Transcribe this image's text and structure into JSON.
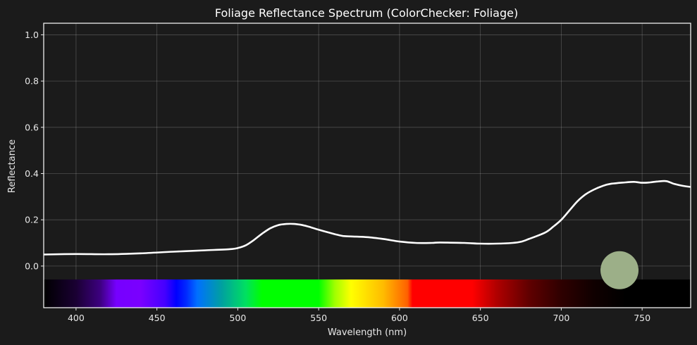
{
  "chart_data": {
    "type": "line",
    "title": "Foliage Reflectance Spectrum (ColorChecker: Foliage)",
    "xlabel": "Wavelength (nm)",
    "ylabel": "Reflectance",
    "xlim": [
      380,
      780
    ],
    "ylim": [
      -0.18,
      1.05
    ],
    "xticks": [
      400,
      450,
      500,
      550,
      600,
      650,
      700,
      750
    ],
    "yticks": [
      0.0,
      0.2,
      0.4,
      0.6,
      0.8,
      1.0
    ],
    "ytick_labels": [
      "0.0",
      "0.2",
      "0.4",
      "0.6",
      "0.8",
      "1.0"
    ],
    "grid": true,
    "legend": null,
    "series": [
      {
        "name": "Foliage reflectance",
        "color": "#ffffff",
        "x": [
          380,
          400,
          420,
          440,
          460,
          480,
          495,
          500,
          505,
          510,
          515,
          520,
          525,
          530,
          535,
          540,
          545,
          550,
          560,
          565,
          570,
          580,
          590,
          600,
          610,
          620,
          625,
          640,
          650,
          660,
          670,
          675,
          680,
          690,
          695,
          700,
          705,
          710,
          715,
          720,
          725,
          730,
          740,
          745,
          750,
          755,
          760,
          765,
          770,
          775,
          780
        ],
        "values": [
          0.05,
          0.052,
          0.051,
          0.055,
          0.062,
          0.068,
          0.073,
          0.078,
          0.09,
          0.113,
          0.14,
          0.163,
          0.177,
          0.182,
          0.182,
          0.177,
          0.168,
          0.157,
          0.138,
          0.13,
          0.128,
          0.125,
          0.117,
          0.106,
          0.1,
          0.1,
          0.102,
          0.1,
          0.097,
          0.097,
          0.1,
          0.105,
          0.117,
          0.145,
          0.17,
          0.2,
          0.24,
          0.28,
          0.31,
          0.33,
          0.345,
          0.355,
          0.362,
          0.364,
          0.36,
          0.362,
          0.366,
          0.367,
          0.355,
          0.347,
          0.342
        ]
      }
    ],
    "annotations": {
      "spectrum_band": {
        "y_range": [
          -0.18,
          -0.058
        ],
        "stops": [
          {
            "nm": 380,
            "color": "#000000"
          },
          {
            "nm": 400,
            "color": "#1a0033"
          },
          {
            "nm": 415,
            "color": "#3d0080"
          },
          {
            "nm": 425,
            "color": "#7600ff"
          },
          {
            "nm": 440,
            "color": "#7a00ff"
          },
          {
            "nm": 455,
            "color": "#4400ff"
          },
          {
            "nm": 462,
            "color": "#0000ff"
          },
          {
            "nm": 468,
            "color": "#0028ff"
          },
          {
            "nm": 475,
            "color": "#0070ff"
          },
          {
            "nm": 490,
            "color": "#00a0a0"
          },
          {
            "nm": 505,
            "color": "#00e060"
          },
          {
            "nm": 515,
            "color": "#00ff00"
          },
          {
            "nm": 550,
            "color": "#00ff00"
          },
          {
            "nm": 560,
            "color": "#a0ff00"
          },
          {
            "nm": 570,
            "color": "#ffff00"
          },
          {
            "nm": 590,
            "color": "#ffbb00"
          },
          {
            "nm": 605,
            "color": "#ff6000"
          },
          {
            "nm": 608,
            "color": "#ff0000"
          },
          {
            "nm": 645,
            "color": "#ff0000"
          },
          {
            "nm": 660,
            "color": "#b00000"
          },
          {
            "nm": 680,
            "color": "#600000"
          },
          {
            "nm": 700,
            "color": "#2e0000"
          },
          {
            "nm": 720,
            "color": "#100000"
          },
          {
            "nm": 740,
            "color": "#000000"
          },
          {
            "nm": 780,
            "color": "#000000"
          }
        ]
      },
      "swatch": {
        "label": "Foliage color swatch",
        "x_nm": 736,
        "y": -0.018,
        "color": "#9caf88"
      }
    }
  },
  "colors": {
    "background": "#1b1b1b",
    "axes_face": "#1b1b1b",
    "line": "#ffffff",
    "text": "#e8e8e8"
  }
}
